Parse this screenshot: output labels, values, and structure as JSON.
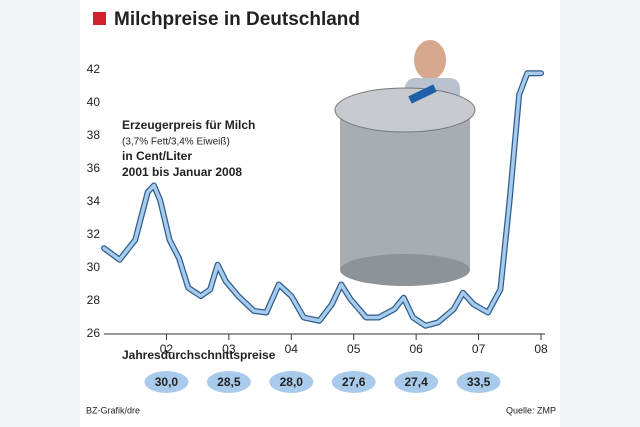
{
  "chart_data": {
    "type": "line",
    "title": "Milchpreise in Deutschland",
    "annotation": [
      "Erzeugerpreis für Milch",
      "(3,7% Fett/3,4% Eiweiß)",
      "in Cent/Liter",
      "2001 bis Januar 2008"
    ],
    "x": [
      2001.0,
      2001.25,
      2001.5,
      2001.7,
      2001.8,
      2001.9,
      2002.05,
      2002.2,
      2002.35,
      2002.55,
      2002.7,
      2002.82,
      2002.95,
      2003.15,
      2003.4,
      2003.6,
      2003.8,
      2004.0,
      2004.2,
      2004.45,
      2004.65,
      2004.8,
      2004.95,
      2005.2,
      2005.4,
      2005.65,
      2005.8,
      2005.95,
      2006.15,
      2006.35,
      2006.6,
      2006.75,
      2006.92,
      2007.15,
      2007.35,
      2007.5,
      2007.65,
      2007.78,
      2008.0
    ],
    "series": [
      {
        "color": "#a9cbeb",
        "values": [
          31.2,
          30.5,
          31.7,
          34.6,
          35.0,
          34.1,
          31.7,
          30.6,
          28.8,
          28.3,
          28.7,
          30.2,
          29.2,
          28.3,
          27.4,
          27.3,
          29.0,
          28.3,
          27.0,
          26.8,
          27.8,
          29.0,
          28.1,
          27.0,
          27.0,
          27.5,
          28.2,
          27.0,
          26.5,
          26.7,
          27.5,
          28.5,
          27.8,
          27.3,
          28.7,
          34.2,
          40.5,
          41.8,
          41.8
        ]
      }
    ],
    "xlim": [
      2001.0,
      2008.0
    ],
    "xticks": [
      {
        "value": 2002,
        "label": "02"
      },
      {
        "value": 2003,
        "label": "03"
      },
      {
        "value": 2004,
        "label": "04"
      },
      {
        "value": 2005,
        "label": "05"
      },
      {
        "value": 2006,
        "label": "06"
      },
      {
        "value": 2007,
        "label": "07"
      },
      {
        "value": 2008,
        "label": "08"
      }
    ],
    "ylim": [
      26,
      42
    ],
    "yticks": [
      26,
      28,
      30,
      32,
      34,
      36,
      38,
      40,
      42
    ],
    "annual_averages": {
      "title": "Jahresdurchschnittspreise",
      "values": [
        30.0,
        28.5,
        28.0,
        27.6,
        27.4,
        33.5
      ],
      "value_labels": [
        "30,0",
        "28,5",
        "28,0",
        "27,6",
        "27,4",
        "33,5"
      ]
    },
    "source": "Quelle: ZMP",
    "credit": "BZ-Grafik/dre"
  }
}
